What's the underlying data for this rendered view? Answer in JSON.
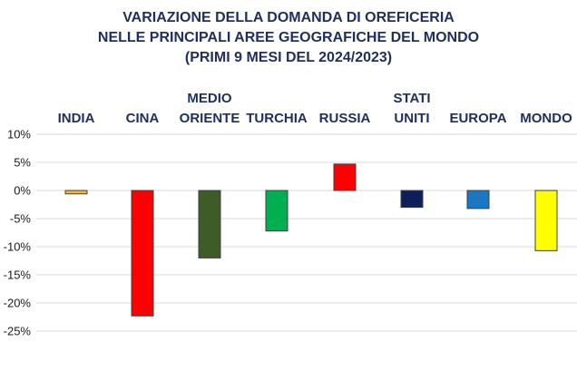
{
  "chart_data": {
    "type": "bar",
    "title_lines": [
      "VARIAZIONE DELLA DOMANDA DI OREFICERIA",
      "NELLE PRINCIPALI AREE GEOGRAFICHE DEL MONDO",
      "(PRIMI 9 MESI DEL 2024/2023)"
    ],
    "categories": [
      [
        "INDIA"
      ],
      [
        "CINA"
      ],
      [
        "MEDIO",
        "ORIENTE"
      ],
      [
        "TURCHIA"
      ],
      [
        "RUSSIA"
      ],
      [
        "STATI",
        "UNITI"
      ],
      [
        "EUROPA"
      ],
      [
        "MONDO"
      ]
    ],
    "values": [
      -0.6,
      -22.3,
      -12.0,
      -7.2,
      4.7,
      -3.0,
      -3.2,
      -10.7
    ],
    "colors": [
      "#f4b842",
      "#ff0000",
      "#3d5c28",
      "#00b050",
      "#ff0000",
      "#0c1f5c",
      "#1a78c2",
      "#ffff00"
    ],
    "ylim": [
      -25,
      10
    ],
    "yticks": [
      "10%",
      "5%",
      "0%",
      "-5%",
      "-10%",
      "-15%",
      "-20%",
      "-25%"
    ],
    "grid": true,
    "xlabel": "",
    "ylabel": ""
  }
}
